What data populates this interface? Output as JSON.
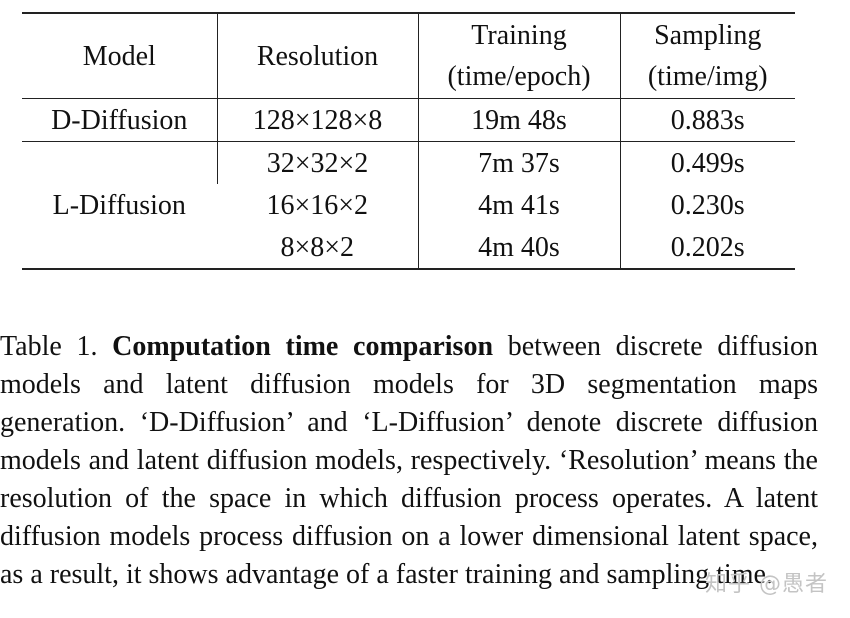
{
  "table": {
    "headers": {
      "model": "Model",
      "resolution": "Resolution",
      "training_line1": "Training",
      "training_line2": "(time/epoch)",
      "sampling_line1": "Sampling",
      "sampling_line2": "(time/img)"
    },
    "groups": [
      {
        "model": "D-Diffusion",
        "rows": [
          {
            "resolution": "128×128×8",
            "training": "19m 48s",
            "sampling": "0.883s"
          }
        ]
      },
      {
        "model": "L-Diffusion",
        "rows": [
          {
            "resolution": "32×32×2",
            "training": "7m 37s",
            "sampling": "0.499s"
          },
          {
            "resolution": "16×16×2",
            "training": "4m 41s",
            "sampling": "0.230s"
          },
          {
            "resolution": "8×8×2",
            "training": "4m 40s",
            "sampling": "0.202s"
          }
        ]
      }
    ]
  },
  "caption": {
    "label": "Table 1.",
    "bold_title": "Computation time comparison",
    "text": "between discrete diffusion models and latent diffusion models for 3D segmentation maps generation. ‘D-Diffusion’ and ‘L-Diffusion’ denote discrete diffusion models and latent diffusion models, respectively. ‘Resolution’ means the resolution of the space in which diffusion process operates. A latent diffusion models process diffusion on a lower dimensional latent space, as a result, it shows advantage of a faster training and sampling time."
  },
  "watermark": "知乎 @愚者"
}
